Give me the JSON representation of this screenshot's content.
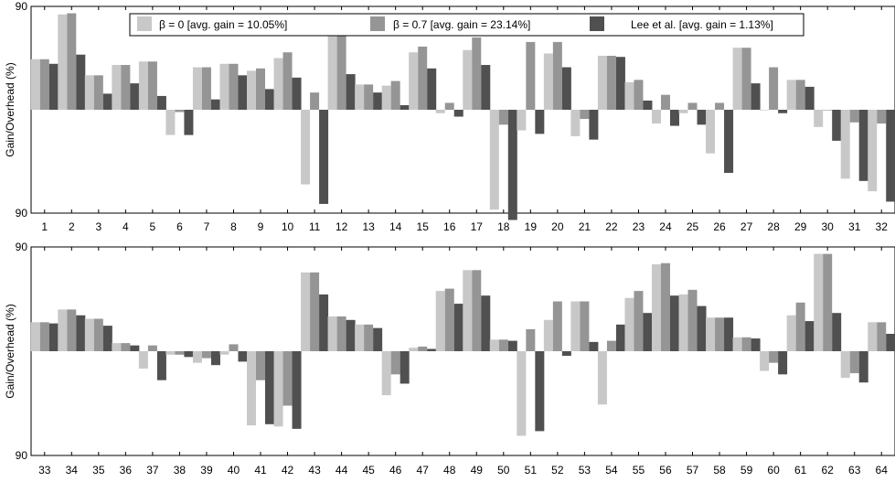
{
  "chart_data": [
    {
      "type": "bar",
      "ylabel": "Gain/Overhead (%)",
      "yticks": [
        "90",
        "90"
      ],
      "ylim": [
        -90,
        90
      ],
      "categories": [
        "1",
        "2",
        "3",
        "4",
        "5",
        "6",
        "7",
        "8",
        "9",
        "10",
        "11",
        "12",
        "13",
        "14",
        "15",
        "16",
        "17",
        "18",
        "19",
        "20",
        "21",
        "22",
        "23",
        "24",
        "25",
        "26",
        "27",
        "28",
        "29",
        "30",
        "31",
        "32"
      ],
      "series": [
        {
          "name": "β = 0 [avg. gain = 10.05%]",
          "color": "#c8c8c8",
          "values": [
            44,
            83,
            30,
            39,
            42,
            -22,
            37,
            40,
            34,
            45,
            -65,
            67,
            22,
            21,
            50,
            -3,
            52,
            -87,
            -18,
            49,
            -23,
            47,
            24,
            -12,
            -3,
            -38,
            54,
            0,
            26,
            -15,
            -60,
            -71
          ]
        },
        {
          "name": "β = 0.7 [avg. gain = 23.14%]",
          "color": "#959595",
          "values": [
            44,
            84,
            30,
            39,
            42,
            -2,
            37,
            40,
            36,
            50,
            15,
            68,
            22,
            25,
            55,
            6,
            63,
            -13,
            59,
            59,
            -8,
            47,
            26,
            13,
            6,
            6,
            54,
            37,
            26,
            0,
            -11,
            -12
          ]
        },
        {
          "name": "Lee et al. [avg. gain = 1.13%]",
          "color": "#505050",
          "values": [
            40,
            48,
            14,
            23,
            12,
            -22,
            9,
            30,
            18,
            28,
            -82,
            31,
            15,
            4,
            36,
            -6,
            39,
            -96,
            -21,
            37,
            -26,
            46,
            8,
            -14,
            -13,
            -55,
            23,
            -3,
            20,
            -27,
            -62,
            -80
          ]
        }
      ]
    },
    {
      "type": "bar",
      "ylabel": "Gain/Overhead (%)",
      "yticks": [
        "90",
        "90"
      ],
      "ylim": [
        -90,
        90
      ],
      "categories": [
        "33",
        "34",
        "35",
        "36",
        "37",
        "38",
        "39",
        "40",
        "41",
        "42",
        "43",
        "44",
        "45",
        "46",
        "47",
        "48",
        "49",
        "50",
        "51",
        "52",
        "53",
        "54",
        "55",
        "56",
        "57",
        "58",
        "59",
        "60",
        "61",
        "62",
        "63",
        "64"
      ],
      "series": [
        {
          "name": "β = 0 [avg. gain = 10.05%]",
          "color": "#c8c8c8",
          "values": [
            25,
            36,
            28,
            7,
            -15,
            -3,
            -10,
            -3,
            -64,
            -65,
            68,
            30,
            23,
            -38,
            3,
            52,
            70,
            10,
            -73,
            27,
            43,
            -46,
            46,
            75,
            49,
            29,
            12,
            -17,
            31,
            84,
            -23,
            25
          ]
        },
        {
          "name": "β = 0.7 [avg. gain = 23.14%]",
          "color": "#959595",
          "values": [
            25,
            36,
            28,
            7,
            5,
            -3,
            -6,
            6,
            -25,
            -47,
            68,
            30,
            23,
            -20,
            4,
            54,
            70,
            10,
            19,
            43,
            43,
            9,
            52,
            76,
            53,
            29,
            12,
            -10,
            42,
            84,
            -19,
            25
          ]
        },
        {
          "name": "Lee et al. [avg. gain = 1.13%]",
          "color": "#505050",
          "values": [
            24,
            31,
            22,
            5,
            -25,
            -5,
            -12,
            -9,
            -63,
            -67,
            49,
            27,
            20,
            -28,
            2,
            41,
            48,
            9,
            -69,
            -4,
            8,
            23,
            33,
            48,
            39,
            29,
            11,
            -20,
            26,
            33,
            -27,
            15
          ]
        }
      ]
    }
  ]
}
